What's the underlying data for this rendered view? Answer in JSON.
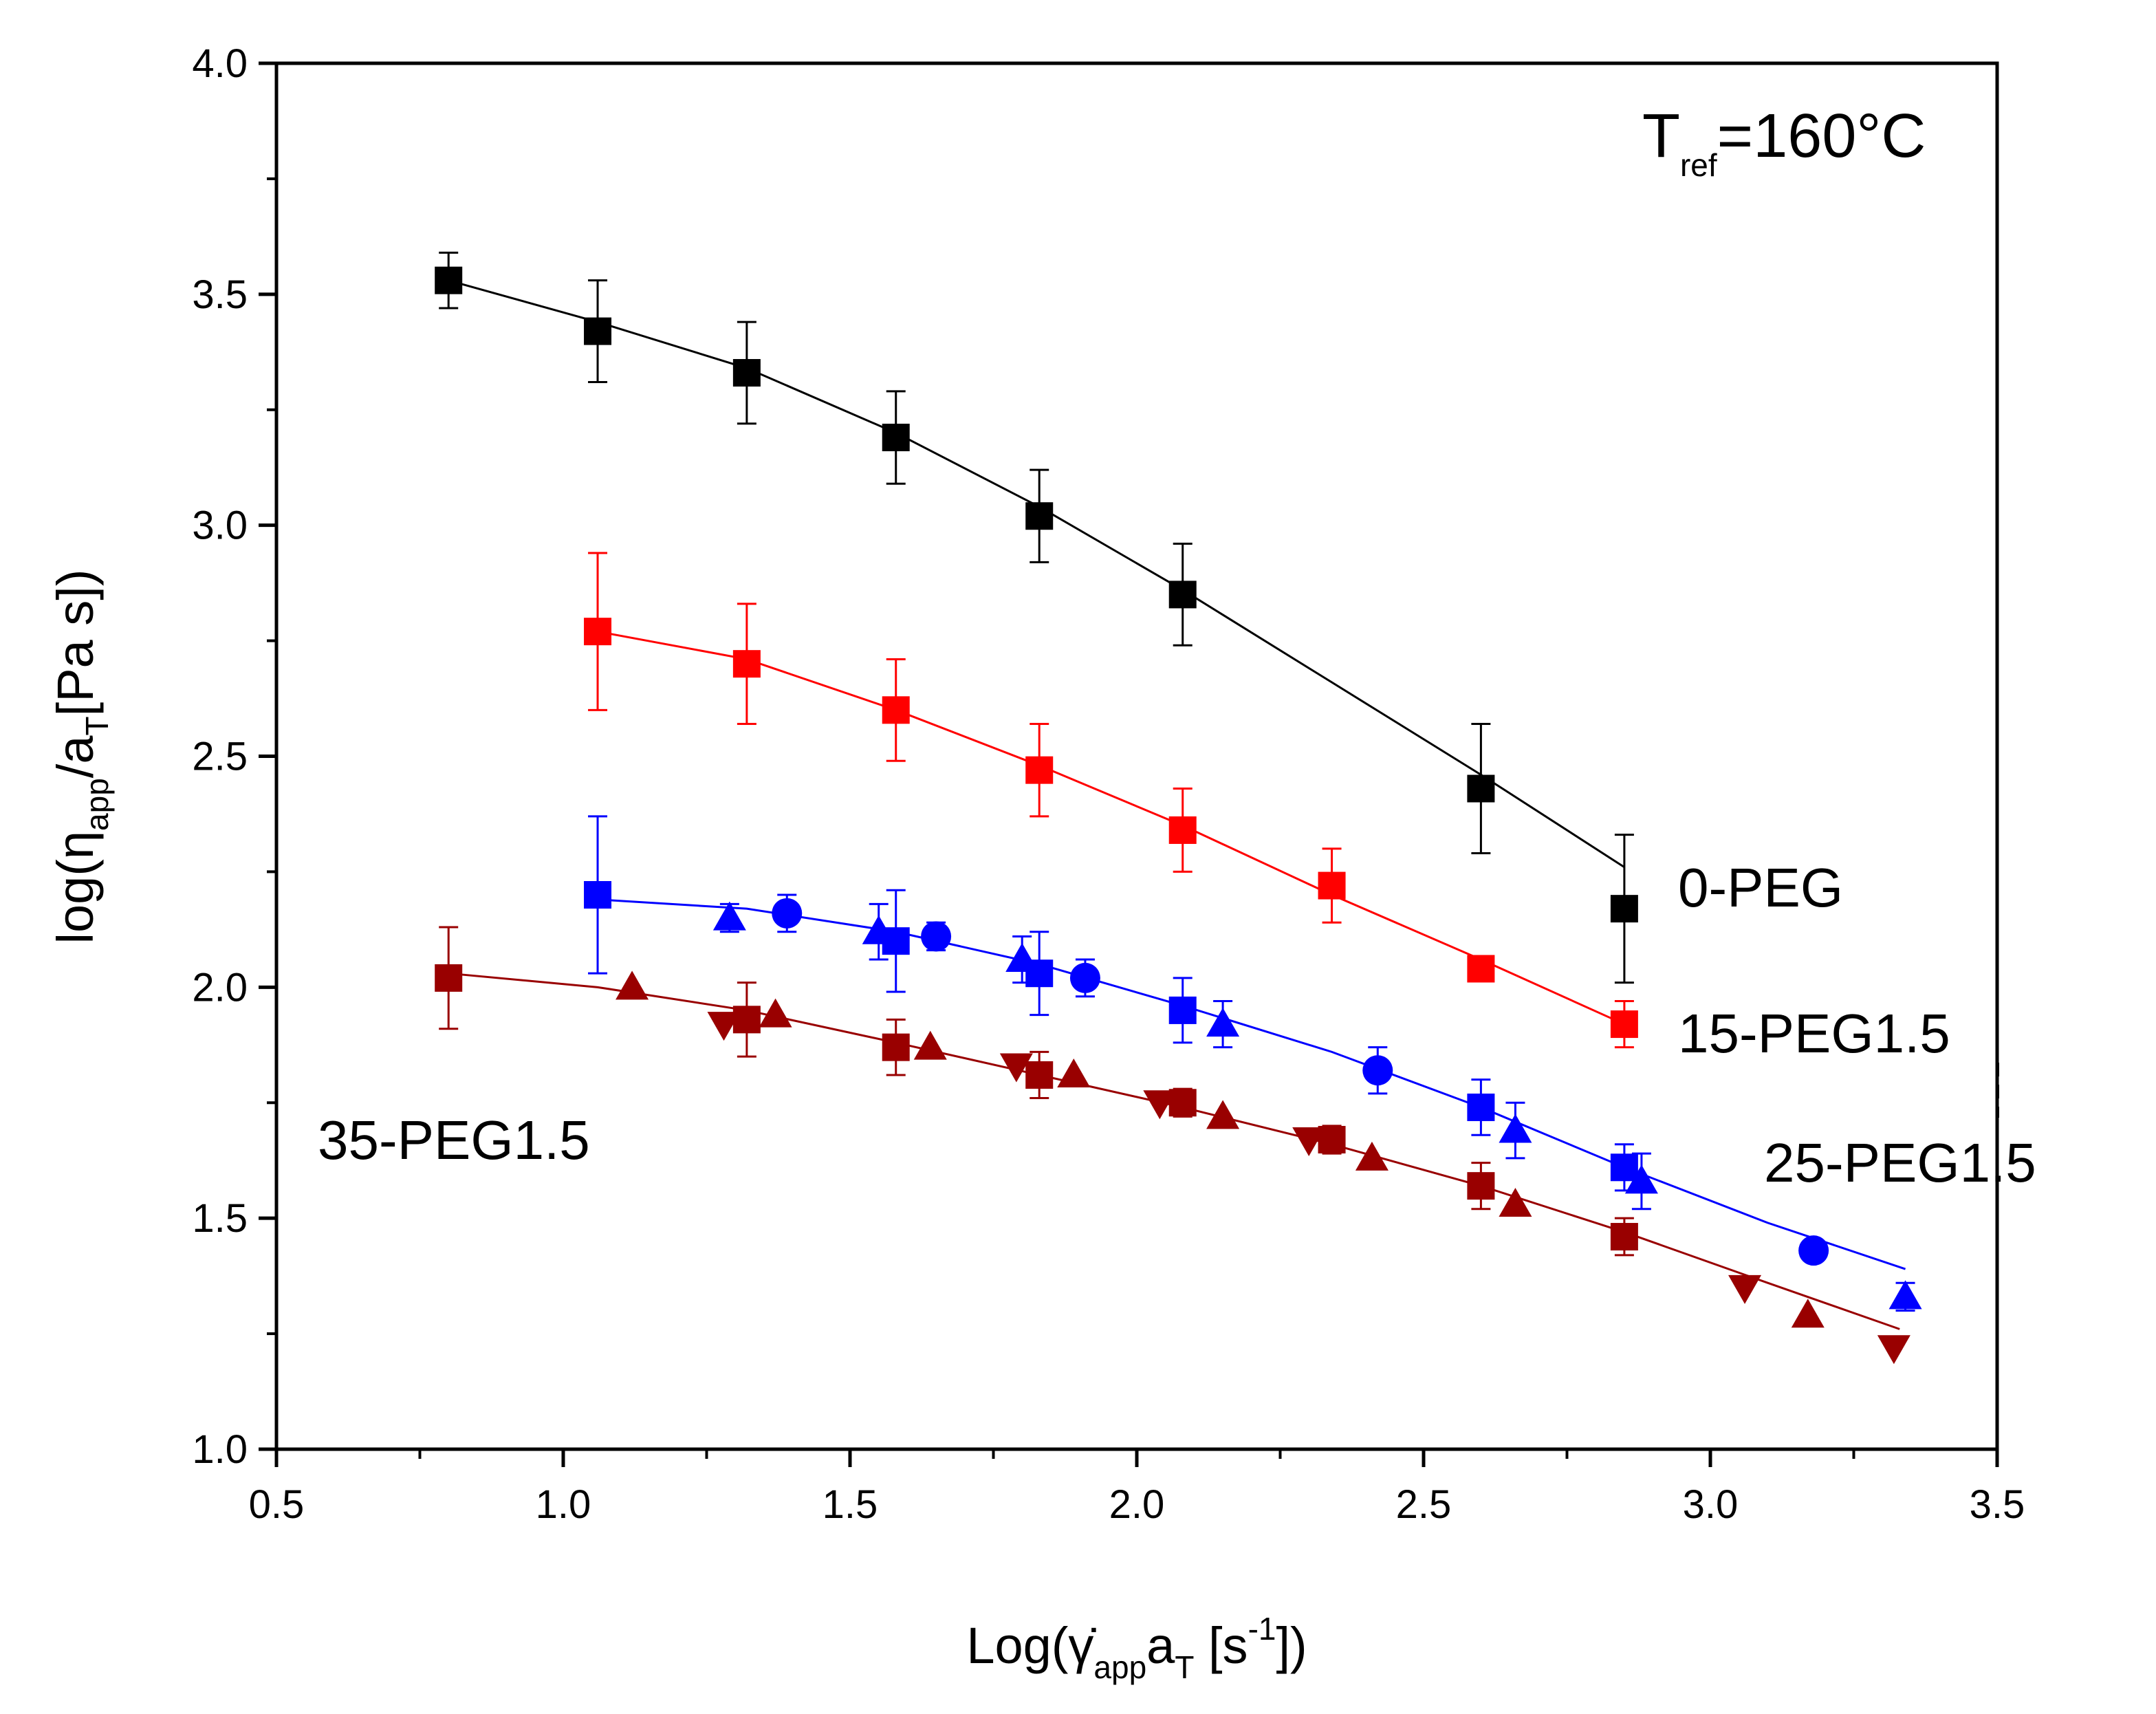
{
  "chart_data": {
    "type": "scatter",
    "title": "",
    "annotation": {
      "symbol": "T",
      "subscript": "ref",
      "value": "=160°C"
    },
    "x_axis": {
      "parts": [
        "Log(",
        "γ̇",
        "app",
        "a",
        "T",
        " [s",
        "-1",
        "])"
      ],
      "range": [
        0.5,
        3.5
      ],
      "ticks": [
        0.5,
        1.0,
        1.5,
        2.0,
        2.5,
        3.0,
        3.5
      ],
      "tick_labels": [
        "0.5",
        "1.0",
        "1.5",
        "2.0",
        "2.5",
        "3.0",
        "3.5"
      ]
    },
    "y_axis": {
      "parts": [
        "log(η",
        "app",
        "/a",
        "T",
        "[Pa s])"
      ],
      "range": [
        1.0,
        4.0
      ],
      "ticks": [
        1.0,
        1.5,
        2.0,
        2.5,
        3.0,
        3.5,
        4.0
      ],
      "tick_labels": [
        "1.0",
        "1.5",
        "2.0",
        "2.5",
        "3.0",
        "3.5",
        "4.0"
      ]
    },
    "series": [
      {
        "name": "0-PEG",
        "label": "0-PEG",
        "color": "#000000",
        "data": [
          {
            "marker": "square",
            "x": 0.8,
            "y": 3.53,
            "err": 0.06
          },
          {
            "marker": "square",
            "x": 1.06,
            "y": 3.42,
            "err": 0.11
          },
          {
            "marker": "square",
            "x": 1.32,
            "y": 3.33,
            "err": 0.11
          },
          {
            "marker": "square",
            "x": 1.58,
            "y": 3.19,
            "err": 0.1
          },
          {
            "marker": "square",
            "x": 1.83,
            "y": 3.02,
            "err": 0.1
          },
          {
            "marker": "square",
            "x": 2.08,
            "y": 2.85,
            "err": 0.11
          },
          {
            "marker": "square",
            "x": 2.6,
            "y": 2.43,
            "err": 0.14
          },
          {
            "marker": "square",
            "x": 2.85,
            "y": 2.17,
            "err": 0.16
          }
        ],
        "fit": [
          [
            0.8,
            3.53
          ],
          [
            1.06,
            3.44
          ],
          [
            1.32,
            3.34
          ],
          [
            1.58,
            3.2
          ],
          [
            1.83,
            3.04
          ],
          [
            2.08,
            2.86
          ],
          [
            2.34,
            2.66
          ],
          [
            2.6,
            2.46
          ],
          [
            2.85,
            2.26
          ]
        ]
      },
      {
        "name": "15-PEG1.5",
        "label": "15-PEG1.5",
        "color": "#ff0000",
        "data": [
          {
            "marker": "square",
            "x": 1.06,
            "y": 2.77,
            "err": 0.17
          },
          {
            "marker": "square",
            "x": 1.32,
            "y": 2.7,
            "err": 0.13
          },
          {
            "marker": "square",
            "x": 1.58,
            "y": 2.6,
            "err": 0.11
          },
          {
            "marker": "square",
            "x": 1.83,
            "y": 2.47,
            "err": 0.1
          },
          {
            "marker": "square",
            "x": 2.08,
            "y": 2.34,
            "err": 0.09
          },
          {
            "marker": "square",
            "x": 2.34,
            "y": 2.22,
            "err": 0.08
          },
          {
            "marker": "square",
            "x": 2.6,
            "y": 2.04,
            "err": 0.02
          },
          {
            "marker": "square",
            "x": 2.85,
            "y": 1.92,
            "err": 0.05
          }
        ],
        "fit": [
          [
            1.06,
            2.77
          ],
          [
            1.32,
            2.71
          ],
          [
            1.58,
            2.6
          ],
          [
            1.83,
            2.48
          ],
          [
            2.08,
            2.35
          ],
          [
            2.34,
            2.2
          ],
          [
            2.6,
            2.06
          ],
          [
            2.85,
            1.92
          ]
        ]
      },
      {
        "name": "25-PEG1.5",
        "label": "25-PEG1.5",
        "color": "#0000ff",
        "data": [
          {
            "marker": "square",
            "x": 1.06,
            "y": 2.2,
            "err": 0.17
          },
          {
            "marker": "square",
            "x": 1.58,
            "y": 2.1,
            "err": 0.11
          },
          {
            "marker": "square",
            "x": 1.83,
            "y": 2.03,
            "err": 0.09
          },
          {
            "marker": "square",
            "x": 2.08,
            "y": 1.95,
            "err": 0.07
          },
          {
            "marker": "square",
            "x": 2.6,
            "y": 1.74,
            "err": 0.06
          },
          {
            "marker": "square",
            "x": 2.85,
            "y": 1.61,
            "err": 0.05
          },
          {
            "marker": "circle",
            "x": 1.39,
            "y": 2.16,
            "err": 0.04
          },
          {
            "marker": "circle",
            "x": 1.65,
            "y": 2.11,
            "err": 0.03
          },
          {
            "marker": "circle",
            "x": 1.91,
            "y": 2.02,
            "err": 0.04
          },
          {
            "marker": "circle",
            "x": 2.42,
            "y": 1.82,
            "err": 0.05
          },
          {
            "marker": "circle",
            "x": 3.18,
            "y": 1.43,
            "err": 0.02
          },
          {
            "marker": "triangle-up",
            "x": 1.29,
            "y": 2.15,
            "err": 0.03
          },
          {
            "marker": "triangle-up",
            "x": 1.55,
            "y": 2.12,
            "err": 0.06
          },
          {
            "marker": "triangle-up",
            "x": 1.8,
            "y": 2.06,
            "err": 0.05
          },
          {
            "marker": "triangle-up",
            "x": 2.15,
            "y": 1.92,
            "err": 0.05
          },
          {
            "marker": "triangle-up",
            "x": 2.66,
            "y": 1.69,
            "err": 0.06
          },
          {
            "marker": "triangle-up",
            "x": 2.88,
            "y": 1.58,
            "err": 0.06
          },
          {
            "marker": "triangle-up",
            "x": 3.34,
            "y": 1.33,
            "err": 0.03
          }
        ],
        "fit": [
          [
            1.06,
            2.19
          ],
          [
            1.32,
            2.17
          ],
          [
            1.58,
            2.12
          ],
          [
            1.83,
            2.05
          ],
          [
            2.08,
            1.96
          ],
          [
            2.34,
            1.86
          ],
          [
            2.6,
            1.74
          ],
          [
            2.85,
            1.61
          ],
          [
            3.1,
            1.49
          ],
          [
            3.34,
            1.39
          ]
        ]
      },
      {
        "name": "35-PEG1.5",
        "label": "35-PEG1.5",
        "color": "#990000",
        "data": [
          {
            "marker": "square",
            "x": 0.8,
            "y": 2.02,
            "err": 0.11
          },
          {
            "marker": "square",
            "x": 1.32,
            "y": 1.93,
            "err": 0.08
          },
          {
            "marker": "square",
            "x": 1.58,
            "y": 1.87,
            "err": 0.06
          },
          {
            "marker": "square",
            "x": 1.83,
            "y": 1.81,
            "err": 0.05
          },
          {
            "marker": "square",
            "x": 2.08,
            "y": 1.75,
            "err": 0.03
          },
          {
            "marker": "square",
            "x": 2.34,
            "y": 1.67,
            "err": 0.03
          },
          {
            "marker": "square",
            "x": 2.6,
            "y": 1.57,
            "err": 0.05
          },
          {
            "marker": "square",
            "x": 2.85,
            "y": 1.46,
            "err": 0.04
          },
          {
            "marker": "triangle-up",
            "x": 1.12,
            "y": 2.0,
            "err": 0
          },
          {
            "marker": "triangle-up",
            "x": 1.37,
            "y": 1.94,
            "err": 0
          },
          {
            "marker": "triangle-up",
            "x": 1.64,
            "y": 1.87,
            "err": 0
          },
          {
            "marker": "triangle-up",
            "x": 1.89,
            "y": 1.81,
            "err": 0
          },
          {
            "marker": "triangle-up",
            "x": 2.15,
            "y": 1.72,
            "err": 0
          },
          {
            "marker": "triangle-up",
            "x": 2.41,
            "y": 1.63,
            "err": 0
          },
          {
            "marker": "triangle-up",
            "x": 2.66,
            "y": 1.53,
            "err": 0
          },
          {
            "marker": "triangle-up",
            "x": 3.17,
            "y": 1.29,
            "err": 0
          },
          {
            "marker": "triangle-down",
            "x": 1.28,
            "y": 1.92,
            "err": 0
          },
          {
            "marker": "triangle-down",
            "x": 1.79,
            "y": 1.83,
            "err": 0
          },
          {
            "marker": "triangle-down",
            "x": 2.04,
            "y": 1.75,
            "err": 0
          },
          {
            "marker": "triangle-down",
            "x": 2.3,
            "y": 1.67,
            "err": 0
          },
          {
            "marker": "triangle-down",
            "x": 3.06,
            "y": 1.35,
            "err": 0
          },
          {
            "marker": "triangle-down",
            "x": 3.32,
            "y": 1.22,
            "err": 0
          }
        ],
        "fit": [
          [
            0.8,
            2.03
          ],
          [
            1.06,
            2.0
          ],
          [
            1.32,
            1.95
          ],
          [
            1.58,
            1.88
          ],
          [
            1.83,
            1.81
          ],
          [
            2.08,
            1.74
          ],
          [
            2.34,
            1.66
          ],
          [
            2.6,
            1.57
          ],
          [
            2.85,
            1.47
          ],
          [
            3.1,
            1.36
          ],
          [
            3.33,
            1.26
          ]
        ]
      }
    ]
  }
}
